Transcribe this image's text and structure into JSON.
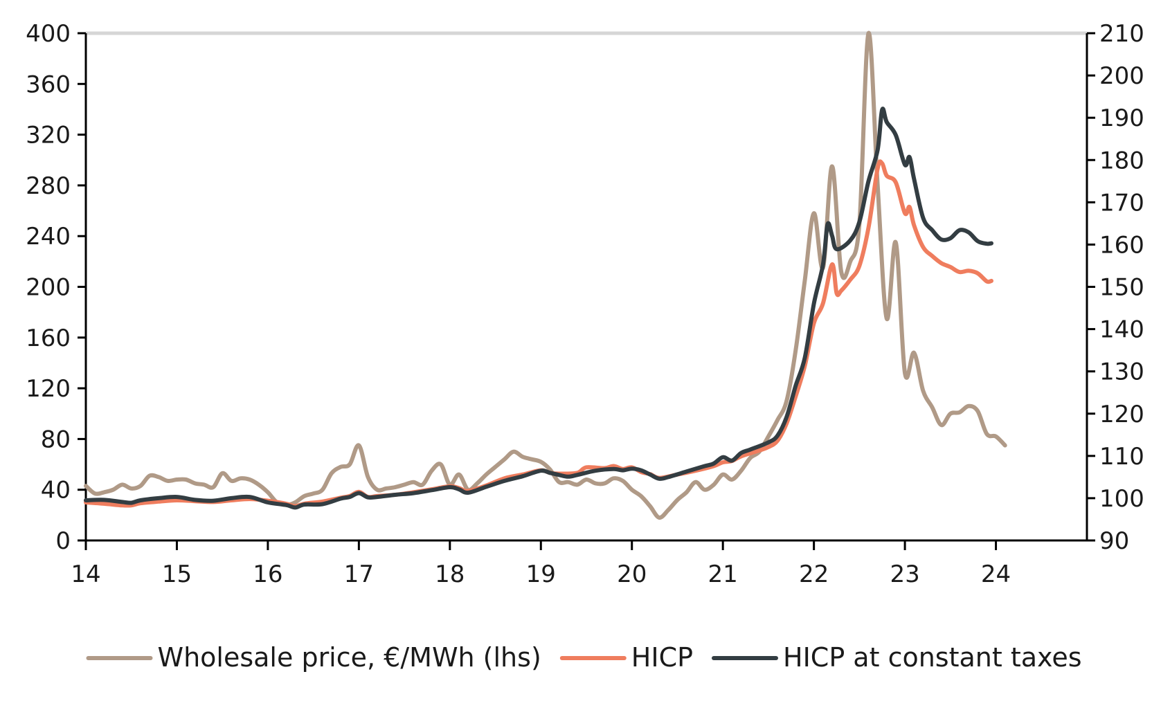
{
  "chart_data": {
    "type": "line",
    "title": "",
    "xlabel": "",
    "ylabel": "",
    "x_ticks": [
      "14",
      "15",
      "16",
      "17",
      "18",
      "19",
      "20",
      "21",
      "22",
      "23",
      "24"
    ],
    "x_tick_values": [
      2014,
      2015,
      2016,
      2017,
      2018,
      2019,
      2020,
      2021,
      2022,
      2023,
      2024
    ],
    "xlim": [
      2014,
      2025
    ],
    "y_left": {
      "ylim": [
        0,
        400
      ],
      "ticks": [
        0,
        40,
        80,
        120,
        160,
        200,
        240,
        280,
        320,
        360,
        400
      ]
    },
    "y_right": {
      "ylim": [
        90,
        210
      ],
      "ticks": [
        90,
        100,
        110,
        120,
        130,
        140,
        150,
        160,
        170,
        180,
        190,
        200,
        210
      ]
    },
    "grid": "top border only",
    "legend_position": "bottom",
    "series": [
      {
        "name": "Wholesale price, €/MWh (lhs)",
        "axis": "left",
        "color": "#b09a87",
        "points": [
          [
            2014.0,
            43
          ],
          [
            2014.1,
            37
          ],
          [
            2014.2,
            38
          ],
          [
            2014.3,
            40
          ],
          [
            2014.4,
            44
          ],
          [
            2014.5,
            41
          ],
          [
            2014.6,
            43
          ],
          [
            2014.7,
            51
          ],
          [
            2014.8,
            50
          ],
          [
            2014.9,
            47
          ],
          [
            2015.0,
            48
          ],
          [
            2015.1,
            48
          ],
          [
            2015.2,
            45
          ],
          [
            2015.3,
            44
          ],
          [
            2015.4,
            42
          ],
          [
            2015.5,
            53
          ],
          [
            2015.6,
            47
          ],
          [
            2015.7,
            49
          ],
          [
            2015.8,
            48
          ],
          [
            2015.9,
            44
          ],
          [
            2016.0,
            38
          ],
          [
            2016.1,
            30
          ],
          [
            2016.2,
            28
          ],
          [
            2016.3,
            30
          ],
          [
            2016.4,
            35
          ],
          [
            2016.5,
            37
          ],
          [
            2016.6,
            40
          ],
          [
            2016.7,
            53
          ],
          [
            2016.8,
            58
          ],
          [
            2016.9,
            60
          ],
          [
            2017.0,
            75
          ],
          [
            2017.1,
            50
          ],
          [
            2017.2,
            40
          ],
          [
            2017.3,
            41
          ],
          [
            2017.4,
            42
          ],
          [
            2017.5,
            44
          ],
          [
            2017.6,
            46
          ],
          [
            2017.7,
            44
          ],
          [
            2017.8,
            55
          ],
          [
            2017.9,
            60
          ],
          [
            2018.0,
            44
          ],
          [
            2018.1,
            52
          ],
          [
            2018.2,
            40
          ],
          [
            2018.3,
            45
          ],
          [
            2018.4,
            52
          ],
          [
            2018.5,
            58
          ],
          [
            2018.6,
            64
          ],
          [
            2018.7,
            70
          ],
          [
            2018.8,
            66
          ],
          [
            2018.9,
            64
          ],
          [
            2019.0,
            62
          ],
          [
            2019.1,
            56
          ],
          [
            2019.2,
            46
          ],
          [
            2019.3,
            46
          ],
          [
            2019.4,
            44
          ],
          [
            2019.5,
            48
          ],
          [
            2019.6,
            45
          ],
          [
            2019.7,
            45
          ],
          [
            2019.8,
            49
          ],
          [
            2019.9,
            47
          ],
          [
            2020.0,
            40
          ],
          [
            2020.1,
            35
          ],
          [
            2020.2,
            27
          ],
          [
            2020.3,
            18
          ],
          [
            2020.4,
            24
          ],
          [
            2020.5,
            32
          ],
          [
            2020.6,
            38
          ],
          [
            2020.7,
            46
          ],
          [
            2020.8,
            40
          ],
          [
            2020.9,
            44
          ],
          [
            2021.0,
            52
          ],
          [
            2021.1,
            48
          ],
          [
            2021.2,
            55
          ],
          [
            2021.3,
            65
          ],
          [
            2021.4,
            70
          ],
          [
            2021.5,
            82
          ],
          [
            2021.6,
            95
          ],
          [
            2021.7,
            110
          ],
          [
            2021.8,
            150
          ],
          [
            2021.9,
            205
          ],
          [
            2022.0,
            258
          ],
          [
            2022.1,
            215
          ],
          [
            2022.2,
            295
          ],
          [
            2022.3,
            212
          ],
          [
            2022.4,
            220
          ],
          [
            2022.5,
            250
          ],
          [
            2022.6,
            400
          ],
          [
            2022.7,
            280
          ],
          [
            2022.8,
            175
          ],
          [
            2022.9,
            235
          ],
          [
            2023.0,
            132
          ],
          [
            2023.1,
            148
          ],
          [
            2023.2,
            118
          ],
          [
            2023.3,
            105
          ],
          [
            2023.4,
            91
          ],
          [
            2023.5,
            100
          ],
          [
            2023.6,
            101
          ],
          [
            2023.7,
            106
          ],
          [
            2023.8,
            102
          ],
          [
            2023.9,
            84
          ],
          [
            2024.0,
            82
          ],
          [
            2024.1,
            75
          ]
        ]
      },
      {
        "name": "HICP",
        "axis": "right",
        "color": "#ef7d5e",
        "points": [
          [
            2014.0,
            99.0
          ],
          [
            2014.2,
            98.7
          ],
          [
            2014.4,
            98.3
          ],
          [
            2014.5,
            98.3
          ],
          [
            2014.6,
            98.8
          ],
          [
            2014.8,
            99.2
          ],
          [
            2015.0,
            99.5
          ],
          [
            2015.2,
            99.3
          ],
          [
            2015.4,
            99.1
          ],
          [
            2015.6,
            99.5
          ],
          [
            2015.8,
            99.8
          ],
          [
            2016.0,
            99.4
          ],
          [
            2016.2,
            98.7
          ],
          [
            2016.3,
            98.1
          ],
          [
            2016.4,
            98.7
          ],
          [
            2016.6,
            99.2
          ],
          [
            2016.8,
            100.1
          ],
          [
            2016.9,
            100.5
          ],
          [
            2017.0,
            101.5
          ],
          [
            2017.1,
            100.3
          ],
          [
            2017.2,
            100.5
          ],
          [
            2017.4,
            100.8
          ],
          [
            2017.6,
            101.4
          ],
          [
            2017.8,
            102.1
          ],
          [
            2018.0,
            102.8
          ],
          [
            2018.1,
            102.4
          ],
          [
            2018.2,
            101.7
          ],
          [
            2018.4,
            103.0
          ],
          [
            2018.6,
            104.7
          ],
          [
            2018.8,
            105.6
          ],
          [
            2019.0,
            106.6
          ],
          [
            2019.1,
            106.0
          ],
          [
            2019.2,
            105.8
          ],
          [
            2019.4,
            106.0
          ],
          [
            2019.5,
            107.3
          ],
          [
            2019.7,
            107.1
          ],
          [
            2019.8,
            107.6
          ],
          [
            2019.9,
            106.9
          ],
          [
            2020.0,
            107.3
          ],
          [
            2020.1,
            106.2
          ],
          [
            2020.2,
            105.7
          ],
          [
            2020.3,
            104.8
          ],
          [
            2020.5,
            105.6
          ],
          [
            2020.7,
            106.5
          ],
          [
            2020.9,
            107.6
          ],
          [
            2021.0,
            108.5
          ],
          [
            2021.1,
            108.8
          ],
          [
            2021.2,
            109.9
          ],
          [
            2021.4,
            111.3
          ],
          [
            2021.5,
            112.1
          ],
          [
            2021.6,
            113.6
          ],
          [
            2021.7,
            117.7
          ],
          [
            2021.8,
            124.1
          ],
          [
            2021.9,
            131.3
          ],
          [
            2022.0,
            141.4
          ],
          [
            2022.1,
            146.1
          ],
          [
            2022.2,
            155.3
          ],
          [
            2022.25,
            148.5
          ],
          [
            2022.3,
            149.1
          ],
          [
            2022.4,
            151.7
          ],
          [
            2022.5,
            155.0
          ],
          [
            2022.6,
            164.0
          ],
          [
            2022.7,
            178.0
          ],
          [
            2022.75,
            179.2
          ],
          [
            2022.8,
            176.3
          ],
          [
            2022.9,
            174.7
          ],
          [
            2023.0,
            167.4
          ],
          [
            2023.05,
            168.9
          ],
          [
            2023.1,
            164.6
          ],
          [
            2023.2,
            159.4
          ],
          [
            2023.3,
            157.3
          ],
          [
            2023.4,
            155.6
          ],
          [
            2023.5,
            154.7
          ],
          [
            2023.6,
            153.5
          ],
          [
            2023.7,
            153.8
          ],
          [
            2023.8,
            153.2
          ],
          [
            2023.9,
            151.3
          ],
          [
            2023.95,
            151.4
          ]
        ]
      },
      {
        "name": "HICP at constant taxes",
        "axis": "right",
        "color": "#333d42",
        "points": [
          [
            2014.0,
            99.5
          ],
          [
            2014.2,
            99.6
          ],
          [
            2014.4,
            99.1
          ],
          [
            2014.5,
            98.9
          ],
          [
            2014.6,
            99.5
          ],
          [
            2014.8,
            100.0
          ],
          [
            2015.0,
            100.3
          ],
          [
            2015.2,
            99.6
          ],
          [
            2015.4,
            99.4
          ],
          [
            2015.6,
            100.0
          ],
          [
            2015.8,
            100.3
          ],
          [
            2016.0,
            99.0
          ],
          [
            2016.2,
            98.4
          ],
          [
            2016.3,
            97.8
          ],
          [
            2016.4,
            98.5
          ],
          [
            2016.6,
            98.6
          ],
          [
            2016.8,
            99.9
          ],
          [
            2016.9,
            100.3
          ],
          [
            2017.0,
            101.2
          ],
          [
            2017.1,
            100.2
          ],
          [
            2017.2,
            100.3
          ],
          [
            2017.4,
            100.8
          ],
          [
            2017.6,
            101.2
          ],
          [
            2017.8,
            101.9
          ],
          [
            2018.0,
            102.6
          ],
          [
            2018.1,
            102.1
          ],
          [
            2018.2,
            101.3
          ],
          [
            2018.4,
            102.7
          ],
          [
            2018.6,
            104.1
          ],
          [
            2018.8,
            105.2
          ],
          [
            2019.0,
            106.5
          ],
          [
            2019.1,
            106.0
          ],
          [
            2019.2,
            105.5
          ],
          [
            2019.3,
            105.1
          ],
          [
            2019.4,
            105.5
          ],
          [
            2019.6,
            106.5
          ],
          [
            2019.8,
            106.9
          ],
          [
            2019.9,
            106.6
          ],
          [
            2020.0,
            107.0
          ],
          [
            2020.1,
            106.6
          ],
          [
            2020.2,
            105.6
          ],
          [
            2020.3,
            104.6
          ],
          [
            2020.4,
            105.0
          ],
          [
            2020.6,
            106.3
          ],
          [
            2020.8,
            107.6
          ],
          [
            2020.9,
            108.2
          ],
          [
            2021.0,
            109.7
          ],
          [
            2021.1,
            108.9
          ],
          [
            2021.2,
            110.7
          ],
          [
            2021.3,
            111.5
          ],
          [
            2021.5,
            113.2
          ],
          [
            2021.6,
            114.8
          ],
          [
            2021.7,
            119.2
          ],
          [
            2021.8,
            126.6
          ],
          [
            2021.9,
            133.2
          ],
          [
            2022.0,
            146.0
          ],
          [
            2022.1,
            155.3
          ],
          [
            2022.15,
            164.8
          ],
          [
            2022.2,
            162.1
          ],
          [
            2022.25,
            158.9
          ],
          [
            2022.4,
            161.0
          ],
          [
            2022.5,
            165.4
          ],
          [
            2022.6,
            175.0
          ],
          [
            2022.7,
            182.4
          ],
          [
            2022.75,
            191.9
          ],
          [
            2022.8,
            189.0
          ],
          [
            2022.9,
            185.9
          ],
          [
            2023.0,
            178.9
          ],
          [
            2023.05,
            180.7
          ],
          [
            2023.1,
            175.6
          ],
          [
            2023.2,
            166.3
          ],
          [
            2023.3,
            163.4
          ],
          [
            2023.4,
            161.2
          ],
          [
            2023.5,
            161.5
          ],
          [
            2023.6,
            163.4
          ],
          [
            2023.7,
            162.9
          ],
          [
            2023.8,
            160.8
          ],
          [
            2023.9,
            160.2
          ],
          [
            2023.95,
            160.3
          ]
        ]
      }
    ]
  }
}
